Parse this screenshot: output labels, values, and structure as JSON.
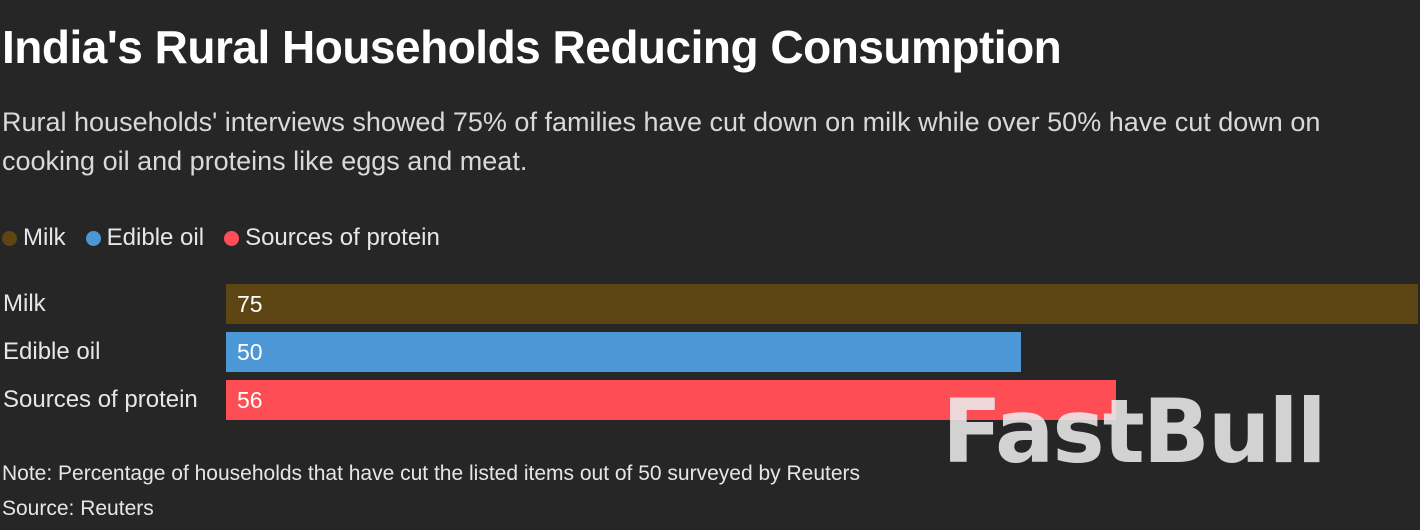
{
  "chart_data": {
    "type": "bar",
    "orientation": "horizontal",
    "title": "India's Rural Households Reducing Consumption",
    "subtitle": "Rural households' interviews showed 75% of families have cut down on milk while over 50% have cut down on cooking oil and proteins like eggs and meat.",
    "categories": [
      "Milk",
      "Edible oil",
      "Sources of protein"
    ],
    "values": [
      75,
      50,
      56
    ],
    "colors": [
      "#5e4614",
      "#4c97d6",
      "#ff4d55"
    ],
    "legend": [
      {
        "label": "Milk",
        "color": "#5e4614"
      },
      {
        "label": "Edible oil",
        "color": "#4c97d6"
      },
      {
        "label": "Sources of protein",
        "color": "#ff4d55"
      }
    ],
    "legend_position": "top-left",
    "xlim": [
      0,
      75
    ],
    "grid": false,
    "note": "Note: Percentage of households that have cut the listed items out of 50 surveyed by Reuters",
    "source": "Source: Reuters"
  },
  "watermark": "FastBull",
  "colors": {
    "background": "#262626"
  }
}
